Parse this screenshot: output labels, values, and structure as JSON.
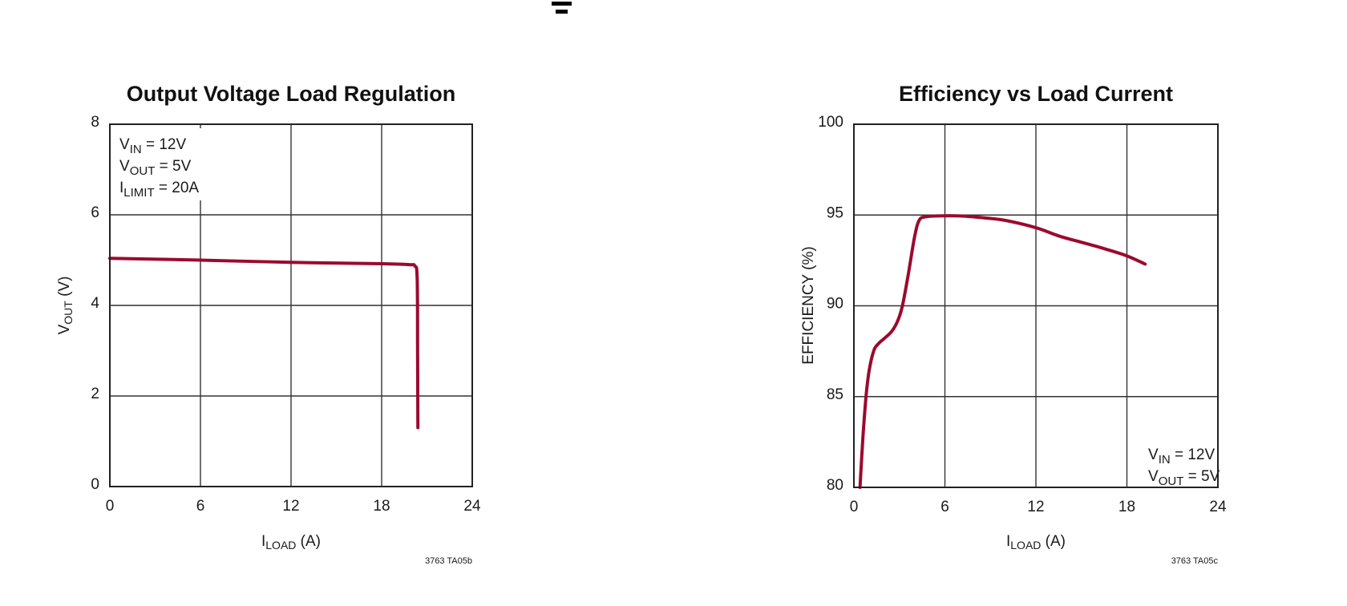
{
  "chart_data": [
    {
      "type": "line",
      "title": "Output Voltage Load Regulation",
      "xlabel": {
        "main": "I",
        "sub": "LOAD",
        "unit": " (A)"
      },
      "ylabel": {
        "main": "V",
        "sub": "OUT",
        "unit": " (V)"
      },
      "xlim": [
        0,
        24
      ],
      "ylim": [
        0,
        8
      ],
      "xticks": [
        "0",
        "6",
        "12",
        "18",
        "24"
      ],
      "yticks": [
        "0",
        "2",
        "4",
        "6",
        "8"
      ],
      "grid": true,
      "annotations": [
        {
          "main": "V",
          "sub": "IN",
          "rest": " = 12V"
        },
        {
          "main": "V",
          "sub": "OUT",
          "rest": " = 5V"
        },
        {
          "main": "I",
          "sub": "LIMIT",
          "rest": " = 20A"
        }
      ],
      "annotation_placement": "top-left",
      "figure_code": "3763 TA05b",
      "series": [
        {
          "name": "VOUT",
          "color": "#9b0a2e",
          "x": [
            0,
            6,
            12,
            18,
            19.8,
            20.2,
            20.35,
            20.38,
            20.4
          ],
          "y": [
            5.04,
            5.0,
            4.95,
            4.92,
            4.9,
            4.87,
            4.6,
            3.0,
            1.3
          ]
        }
      ]
    },
    {
      "type": "line",
      "title": "Efficiency vs Load Current",
      "xlabel": {
        "main": "I",
        "sub": "LOAD",
        "unit": " (A)"
      },
      "ylabel": {
        "main": "EFFICIENCY (%)",
        "sub": "",
        "unit": ""
      },
      "xlim": [
        0,
        24
      ],
      "ylim": [
        80,
        100
      ],
      "xticks": [
        "0",
        "6",
        "12",
        "18",
        "24"
      ],
      "yticks": [
        "80",
        "85",
        "90",
        "95",
        "100"
      ],
      "grid": true,
      "annotations": [
        {
          "main": "V",
          "sub": "IN",
          "rest": " = 12V"
        },
        {
          "main": "V",
          "sub": "OUT",
          "rest": " = 5V"
        }
      ],
      "annotation_placement": "bottom-right",
      "figure_code": "3763 TA05c",
      "series": [
        {
          "name": "Efficiency",
          "color": "#9b0a2e",
          "x": [
            0.4,
            0.6,
            0.8,
            1.0,
            1.3,
            1.6,
            2.0,
            2.5,
            2.9,
            3.2,
            3.6,
            4.0,
            4.3,
            4.7,
            5.5,
            7.0,
            8.5,
            10.0,
            12.0,
            13.5,
            15.0,
            16.5,
            18.0,
            19.2
          ],
          "y": [
            80.0,
            82.8,
            85.0,
            86.4,
            87.5,
            87.9,
            88.2,
            88.6,
            89.2,
            90.0,
            91.8,
            93.8,
            94.7,
            94.9,
            94.95,
            94.95,
            94.85,
            94.7,
            94.3,
            93.85,
            93.5,
            93.15,
            92.75,
            92.3
          ]
        }
      ]
    }
  ],
  "header_mark": "page-top-glyph"
}
